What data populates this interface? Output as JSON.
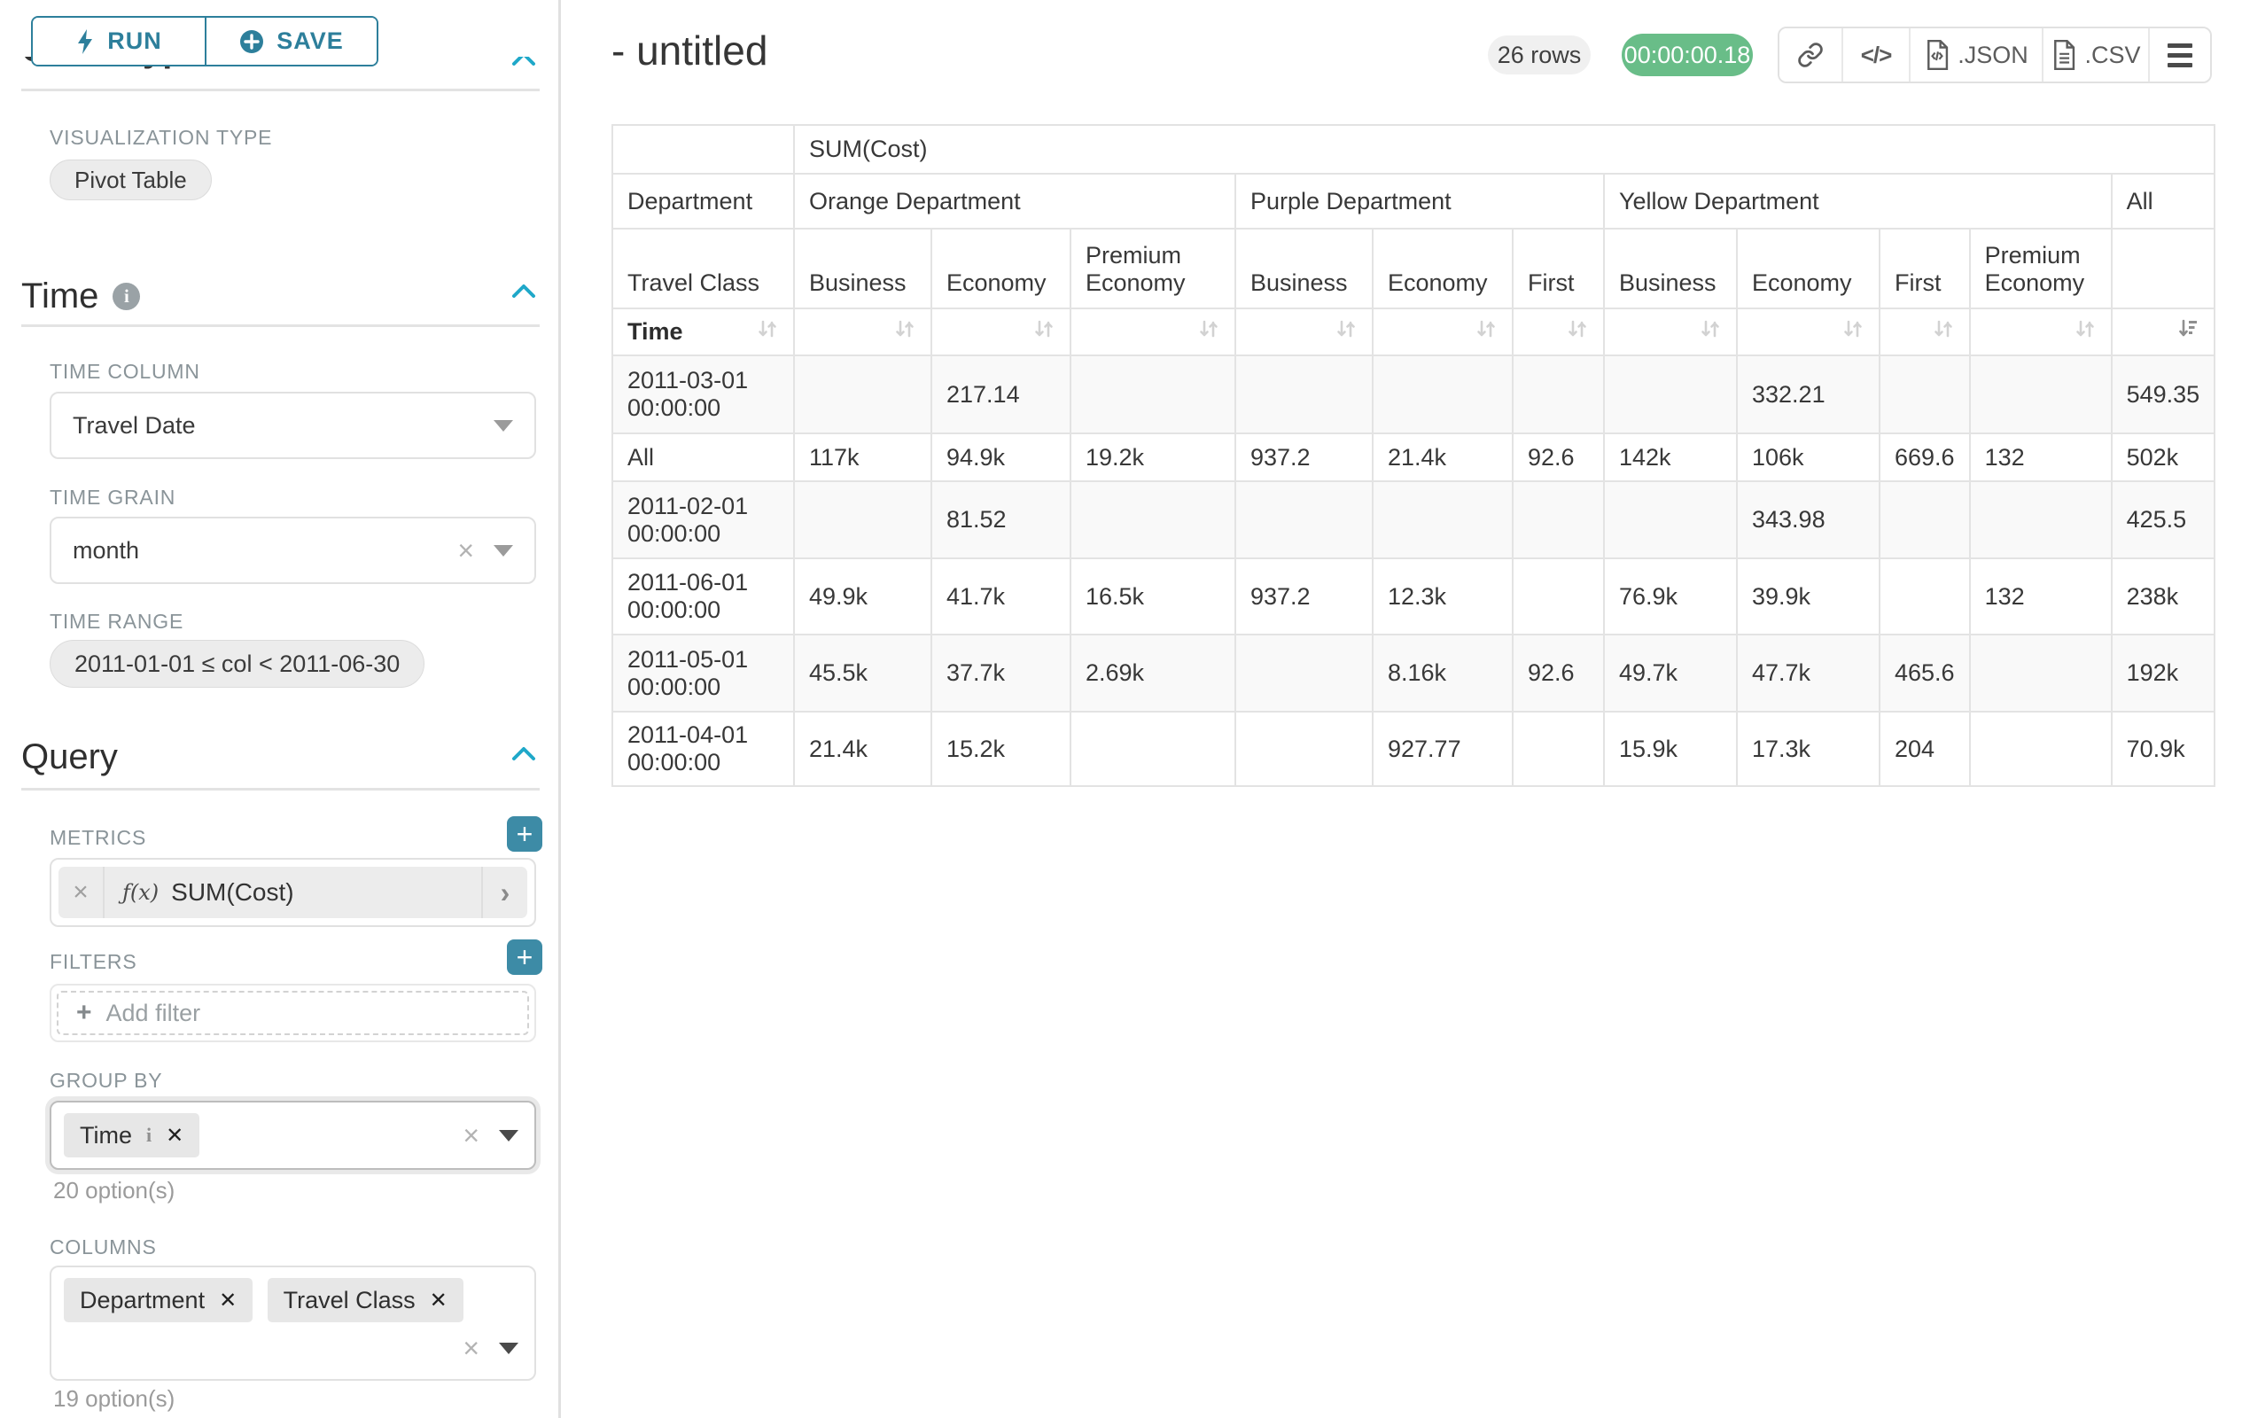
{
  "icons": {
    "code": "</>",
    "clear_x": "×",
    "tag_remove": "✕",
    "plus": "+",
    "chevron_right": "›",
    "fx": "ƒ(x)",
    "info": "i"
  },
  "sidebar": {
    "run_button": "RUN",
    "save_button": "SAVE",
    "clipped_heading": "Chart Type",
    "visualization_type_label": "VISUALIZATION TYPE",
    "visualization_type_value": "Pivot Table",
    "time_section": {
      "title": "Time",
      "time_column_label": "TIME COLUMN",
      "time_column_value": "Travel Date",
      "time_grain_label": "TIME GRAIN",
      "time_grain_value": "month",
      "time_range_label": "TIME RANGE",
      "time_range_value": "2011-01-01 ≤ col < 2011-06-30"
    },
    "query_section": {
      "title": "Query",
      "metrics_label": "METRICS",
      "metric_value": "SUM(Cost)",
      "filters_label": "FILTERS",
      "add_filter_placeholder": "Add filter",
      "group_by_label": "GROUP BY",
      "group_by_tag": "Time",
      "group_by_options_hint": "20 option(s)",
      "columns_label": "COLUMNS",
      "columns_tag_1": "Department",
      "columns_tag_2": "Travel Class",
      "columns_options_hint": "19 option(s)"
    }
  },
  "header": {
    "title": "- untitled",
    "rows_badge": "26 rows",
    "timer_badge": "00:00:00.18",
    "json_button": ".JSON",
    "csv_button": ".CSV"
  },
  "pivot_table": {
    "metric_header": "SUM(Cost)",
    "column_dimension_label": "Department",
    "row_dimension_label": "Travel Class",
    "sort_row_label": "Time",
    "column_groups": [
      {
        "label": "Orange Department",
        "span": 3
      },
      {
        "label": "Purple Department",
        "span": 3
      },
      {
        "label": "Yellow Department",
        "span": 4
      },
      {
        "label": "All",
        "span": 1
      }
    ],
    "travel_classes": [
      "Business",
      "Economy",
      "Premium Economy",
      "Business",
      "Economy",
      "First",
      "Business",
      "Economy",
      "First",
      "Premium Economy",
      ""
    ],
    "rows": [
      {
        "header": "2011-03-01 00:00:00",
        "values": [
          "",
          "217.14",
          "",
          "",
          "",
          "",
          "",
          "332.21",
          "",
          "",
          "549.35"
        ]
      },
      {
        "header": "All",
        "values": [
          "117k",
          "94.9k",
          "19.2k",
          "937.2",
          "21.4k",
          "92.6",
          "142k",
          "106k",
          "669.6",
          "132",
          "502k"
        ]
      },
      {
        "header": "2011-02-01 00:00:00",
        "values": [
          "",
          "81.52",
          "",
          "",
          "",
          "",
          "",
          "343.98",
          "",
          "",
          "425.5"
        ]
      },
      {
        "header": "2011-06-01 00:00:00",
        "values": [
          "49.9k",
          "41.7k",
          "16.5k",
          "937.2",
          "12.3k",
          "",
          "76.9k",
          "39.9k",
          "",
          "132",
          "238k"
        ]
      },
      {
        "header": "2011-05-01 00:00:00",
        "values": [
          "45.5k",
          "37.7k",
          "2.69k",
          "",
          "8.16k",
          "92.6",
          "49.7k",
          "47.7k",
          "465.6",
          "",
          "192k"
        ]
      },
      {
        "header": "2011-04-01 00:00:00",
        "values": [
          "21.4k",
          "15.2k",
          "",
          "",
          "927.77",
          "",
          "15.9k",
          "17.3k",
          "204",
          "",
          "70.9k"
        ]
      }
    ]
  },
  "colors": {
    "accent_chevron": "#1fa8c9",
    "button_teal": "#2d7f9b",
    "plus_teal": "#3d8ba6",
    "timer_green": "#69bd88",
    "border_gray": "#e3e3e3",
    "label_gray": "#8a9499"
  }
}
